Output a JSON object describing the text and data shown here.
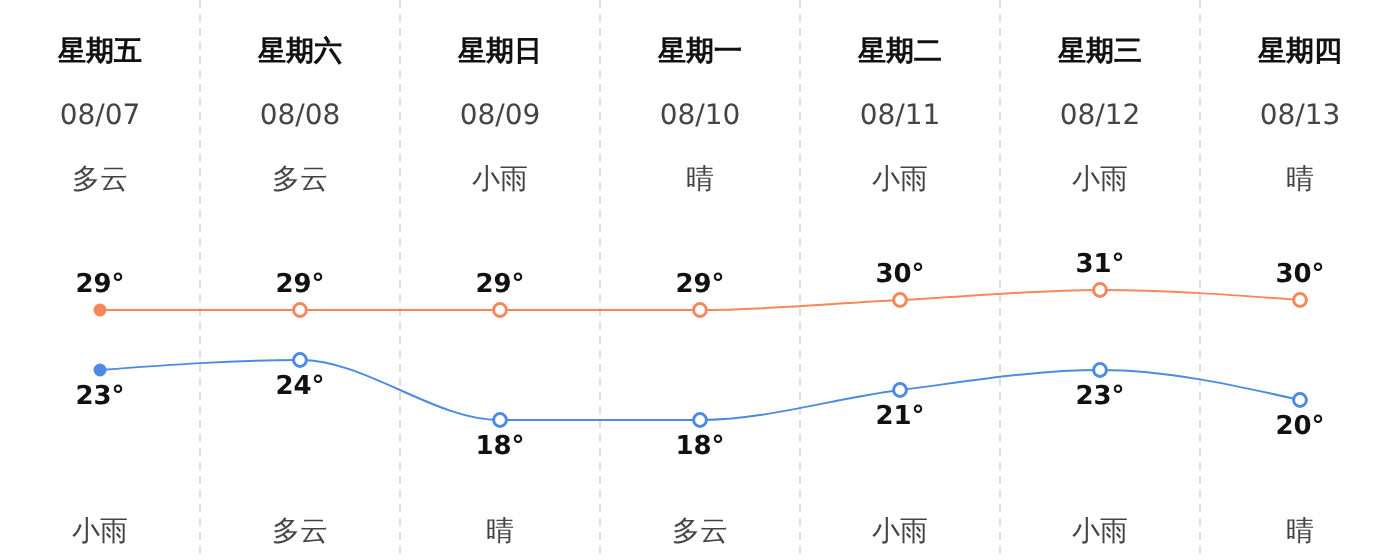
{
  "chart_data": {
    "type": "line",
    "categories": [
      "星期五\n08/07\n多云",
      "星期六\n08/08\n多云",
      "星期日\n08/09\n小雨",
      "星期一\n08/10\n晴",
      "星期二\n08/11\n小雨",
      "星期三\n08/12\n小雨",
      "星期四\n08/13\n晴"
    ],
    "series": [
      {
        "color": "#f7875a",
        "values": [
          29,
          29,
          29,
          29,
          30,
          31,
          30
        ],
        "value_labels": [
          "29°",
          "29°",
          "29°",
          "29°",
          "30°",
          "31°",
          "30°"
        ]
      },
      {
        "color": "#4d8ae3",
        "values": [
          23,
          24,
          18,
          18,
          21,
          23,
          20
        ],
        "value_labels": [
          "23°",
          "24°",
          "18°",
          "18°",
          "21°",
          "23°",
          "20°"
        ]
      }
    ],
    "grid": "x",
    "marker": "circle",
    "line_style": "solid",
    "annotations": [
      "小雨",
      "多云",
      "晴",
      "多云",
      "小雨",
      "小雨",
      "晴"
    ]
  }
}
